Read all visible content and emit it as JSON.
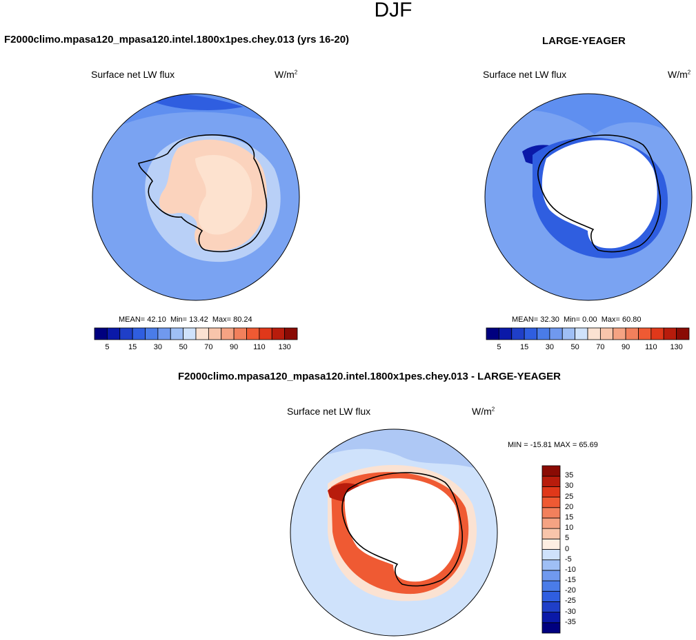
{
  "main_title": "DJF",
  "panels": [
    {
      "title": "F2000climo.mpasa120_mpasa120.intel.1800x1pes.chey.013 (yrs 16-20)",
      "variable": "Surface net LW flux",
      "units": "W/m",
      "units_exp": "2",
      "stats": {
        "mean_label": "MEAN=",
        "mean": "42.10",
        "min_label": "Min=",
        "min": "13.42",
        "max_label": "Max=",
        "max": "80.24"
      }
    },
    {
      "title": "LARGE-YEAGER",
      "variable": "Surface net LW flux",
      "units": "W/m",
      "units_exp": "2",
      "stats": {
        "mean_label": "MEAN=",
        "mean": "32.30",
        "min_label": "Min=",
        "min": "0.00",
        "max_label": "Max=",
        "max": "60.80"
      }
    },
    {
      "title": "F2000climo.mpasa120_mpasa120.intel.1800x1pes.chey.013 - LARGE-YEAGER",
      "variable": "Surface net LW flux",
      "units": "W/m",
      "units_exp": "2",
      "stats_line": "MIN = -15.81 MAX =  65.69"
    }
  ],
  "colorbar_main": {
    "colors": [
      "#00007f",
      "#0a19a8",
      "#1f3fc8",
      "#2f5ee0",
      "#4a7ce8",
      "#7099ee",
      "#9fbff5",
      "#cfe2fb",
      "#fbe2d2",
      "#f8c5ab",
      "#f5a383",
      "#f2805c",
      "#ef5a33",
      "#e0381a",
      "#b81c0c",
      "#8a0b04"
    ],
    "tick_labels": [
      "5",
      "15",
      "30",
      "50",
      "70",
      "90",
      "110",
      "130"
    ]
  },
  "colorbar_diff": {
    "colors": [
      "#00007f",
      "#0a19a8",
      "#1f3fc8",
      "#2f5ee0",
      "#4a7ce8",
      "#7099ee",
      "#9fbff5",
      "#cfe2fb",
      "#fdeee2",
      "#f8c5ab",
      "#f5a383",
      "#f2805c",
      "#ef5a33",
      "#e0381a",
      "#b81c0c",
      "#8a0b04"
    ],
    "tick_labels": [
      "-35",
      "-30",
      "-25",
      "-20",
      "-15",
      "-10",
      "-5",
      "0",
      "5",
      "10",
      "15",
      "20",
      "25",
      "30",
      "35"
    ]
  },
  "map_colors": {
    "ocean_a": "#5f8ff0",
    "ocean_b": "#7aa3f2",
    "deep": "#2f5ee0",
    "ice": "#b9d0f7",
    "land_a": "#fbd3bd",
    "land_b": "#fde2cf",
    "white": "#ffffff",
    "diff_bg": "#cfe2fb",
    "diff_mid": "#aec8f5",
    "red_a": "#ef5a33",
    "red_b": "#b81c0c",
    "peach": "#fbe2d2"
  }
}
